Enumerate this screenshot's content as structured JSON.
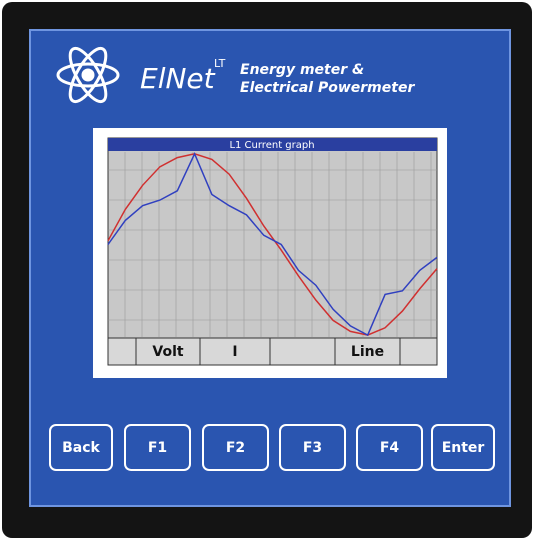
{
  "header": {
    "brand": "ElNet",
    "model": "LT",
    "tagline_1": "Energy meter &",
    "tagline_2": "Electrical Powermeter"
  },
  "screen": {
    "title": "L1 Current graph",
    "graph": {
      "ylim": [
        0,
        100
      ],
      "series": [
        {
          "color": "#d03030",
          "values": [
            52,
            69,
            82,
            92,
            97,
            99,
            96,
            88,
            75,
            60,
            47,
            33,
            20,
            9,
            3,
            1,
            5,
            14,
            26,
            37
          ]
        },
        {
          "color": "#3040c0",
          "values": [
            50,
            63,
            71,
            74,
            79,
            99,
            77,
            71,
            66,
            55,
            50,
            36,
            28,
            15,
            6,
            1,
            23,
            25,
            36,
            43
          ]
        }
      ]
    },
    "softkeys": [
      "Volt",
      "I",
      "Line"
    ]
  },
  "buttons": [
    "Back",
    "F1",
    "F2",
    "F3",
    "F4",
    "Enter"
  ]
}
